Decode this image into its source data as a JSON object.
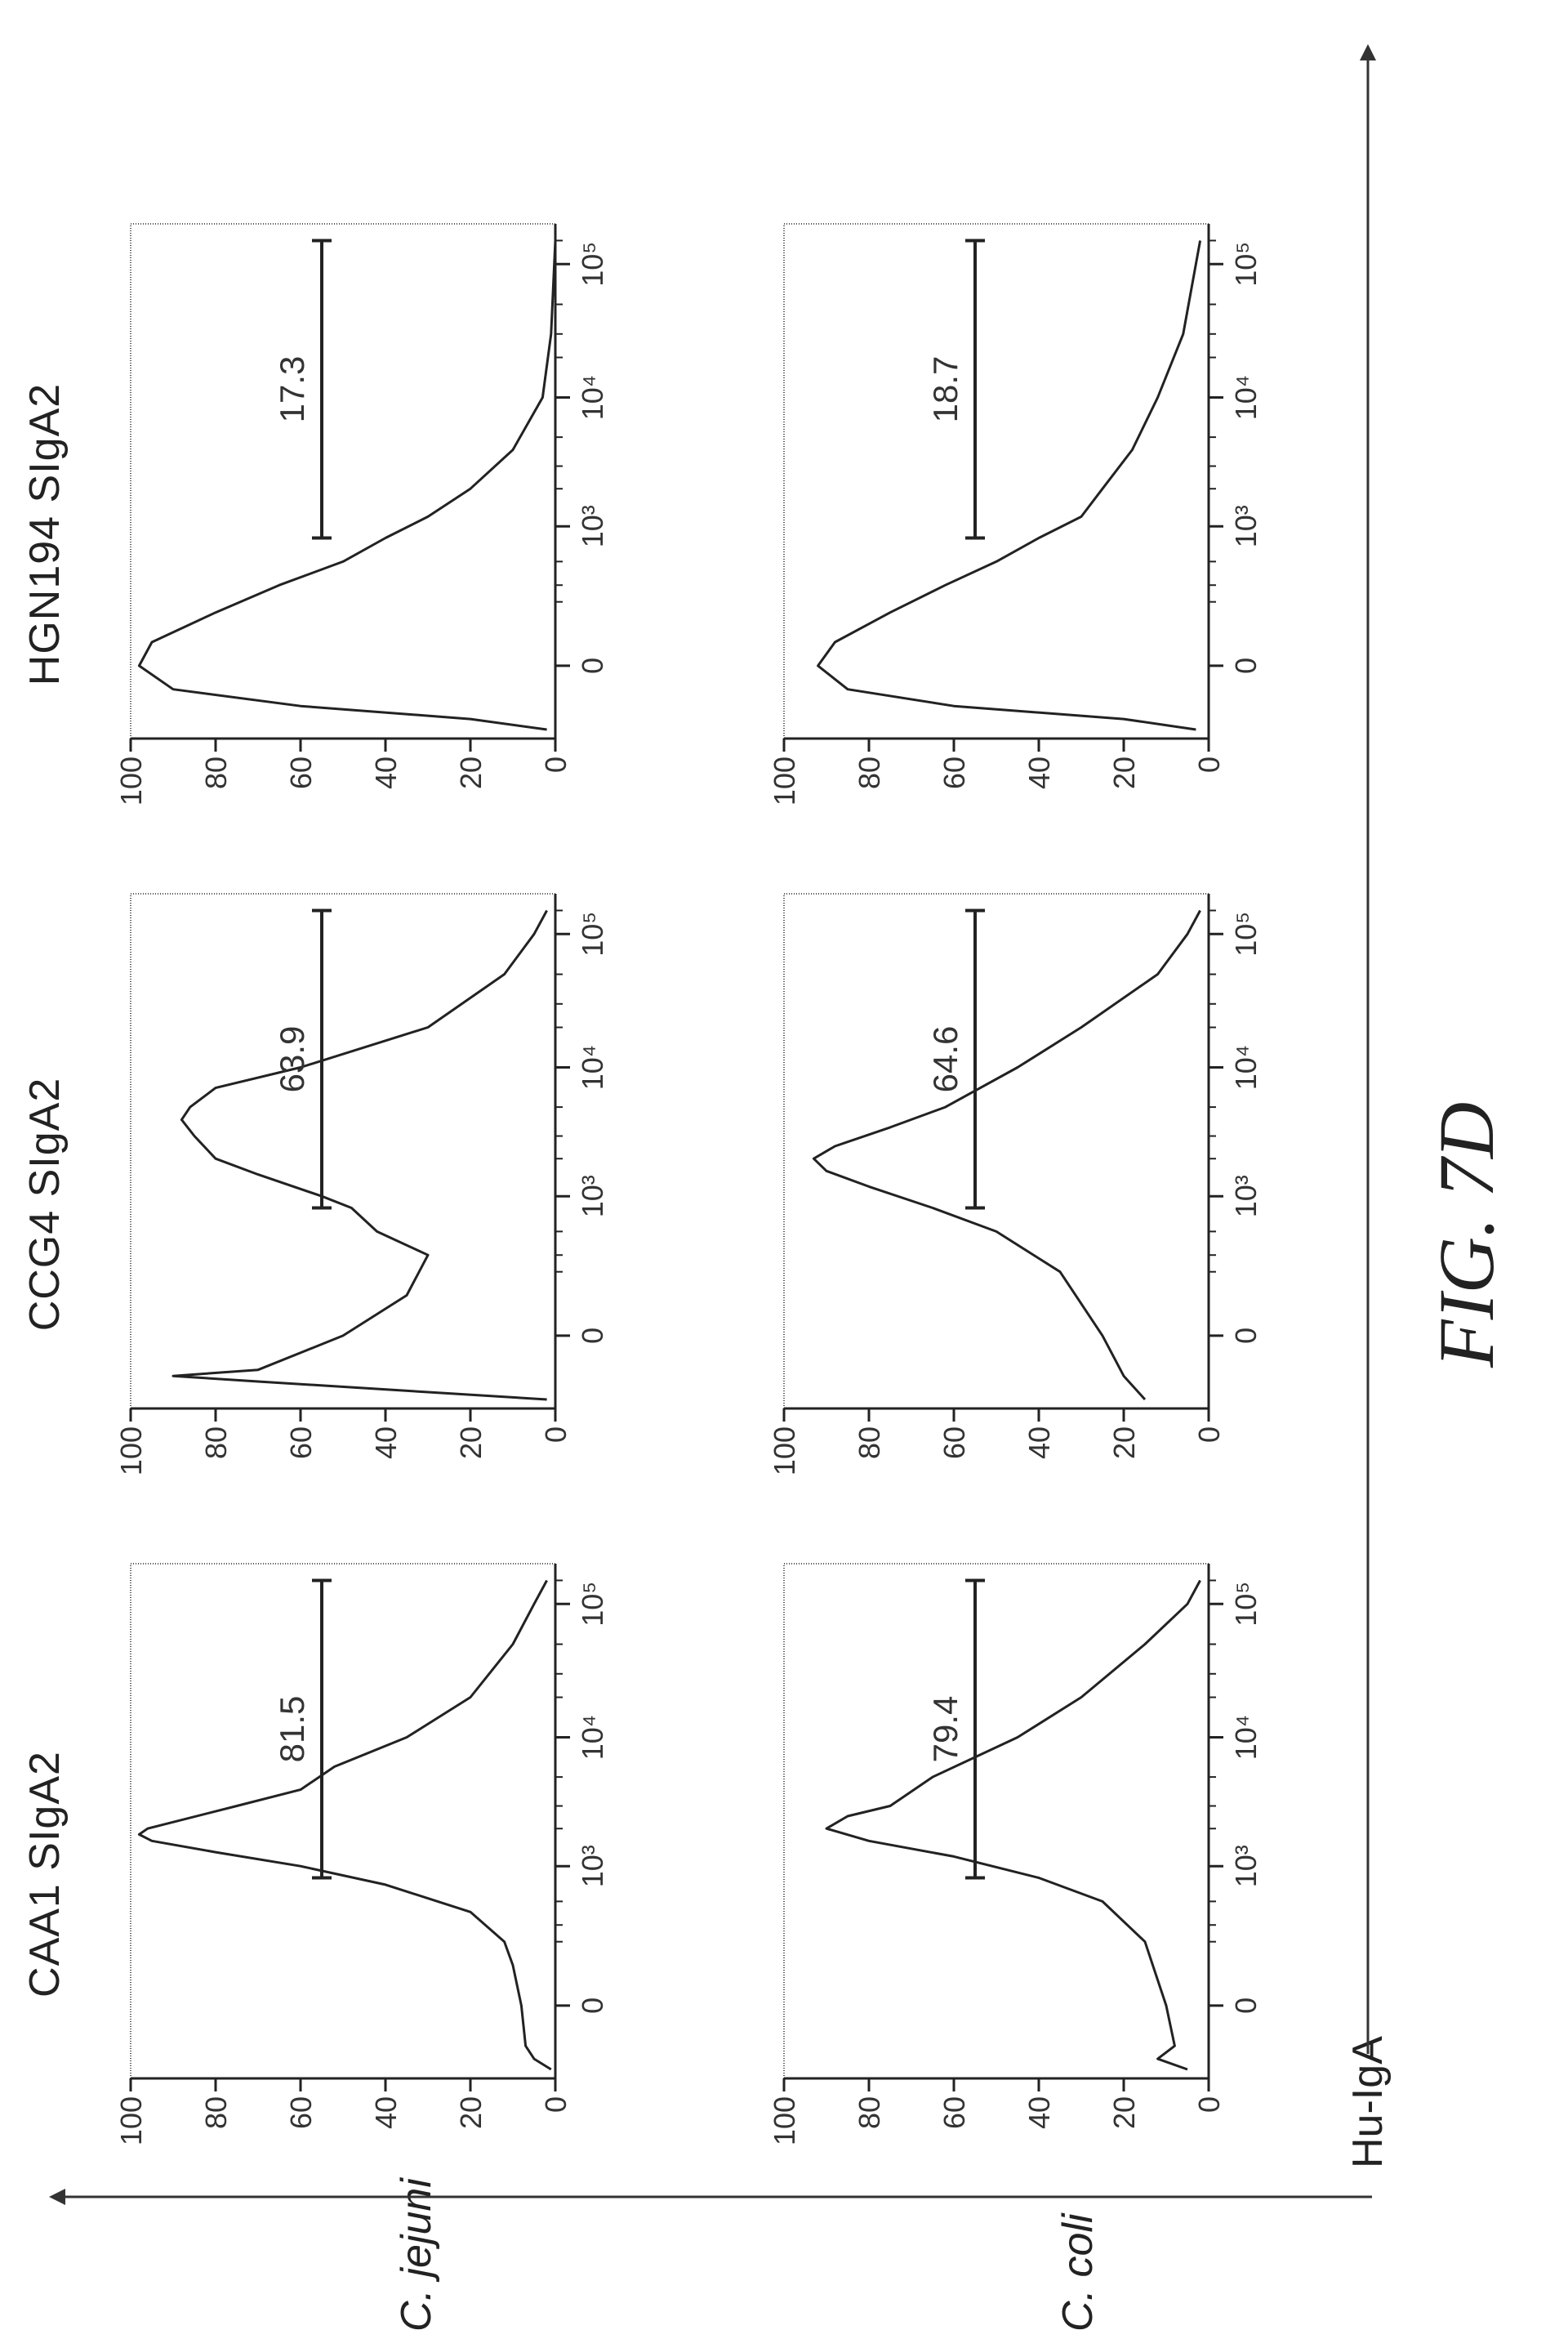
{
  "figure": {
    "label": "FIG. 7D",
    "x_axis_label": "Hu-IgA",
    "columns": [
      "CAA1 SIgA2",
      "CCG4 SIgA2",
      "HGN194 SIgA2"
    ],
    "rows": [
      "C. jejuni",
      "C. coli"
    ]
  },
  "chart_data": [
    {
      "type": "area",
      "row": "C. jejuni",
      "column": "CAA1 SIgA2",
      "gate_value": "81.5",
      "gate_range": [
        800,
        150000
      ],
      "ylim": [
        0,
        100
      ],
      "yticks": [
        "0",
        "20",
        "40",
        "60",
        "80",
        "100"
      ],
      "xticks": [
        "0",
        "10³",
        "10⁴",
        "10⁵"
      ],
      "points": [
        [
          -200,
          1
        ],
        [
          -150,
          5
        ],
        [
          -100,
          7
        ],
        [
          0,
          8
        ],
        [
          100,
          10
        ],
        [
          200,
          12
        ],
        [
          400,
          20
        ],
        [
          700,
          40
        ],
        [
          1000,
          60
        ],
        [
          1300,
          80
        ],
        [
          1600,
          95
        ],
        [
          1800,
          98
        ],
        [
          2000,
          96
        ],
        [
          3000,
          75
        ],
        [
          4000,
          60
        ],
        [
          6000,
          52
        ],
        [
          10000,
          35
        ],
        [
          20000,
          20
        ],
        [
          50000,
          10
        ],
        [
          100000,
          5
        ],
        [
          150000,
          2
        ]
      ]
    },
    {
      "type": "area",
      "row": "C. jejuni",
      "column": "CCG4 SIgA2",
      "gate_value": "63.9",
      "gate_range": [
        800,
        150000
      ],
      "ylim": [
        0,
        100
      ],
      "yticks": [
        "0",
        "20",
        "40",
        "60",
        "80",
        "100"
      ],
      "xticks": [
        "0",
        "10³",
        "10⁴",
        "10⁵"
      ],
      "points": [
        [
          -200,
          2
        ],
        [
          -120,
          70
        ],
        [
          -100,
          90
        ],
        [
          -80,
          70
        ],
        [
          0,
          50
        ],
        [
          100,
          35
        ],
        [
          300,
          30
        ],
        [
          500,
          42
        ],
        [
          800,
          48
        ],
        [
          1000,
          55
        ],
        [
          1500,
          70
        ],
        [
          2000,
          80
        ],
        [
          3000,
          85
        ],
        [
          4000,
          88
        ],
        [
          5000,
          86
        ],
        [
          7000,
          80
        ],
        [
          10000,
          60
        ],
        [
          20000,
          30
        ],
        [
          50000,
          12
        ],
        [
          100000,
          5
        ],
        [
          150000,
          2
        ]
      ]
    },
    {
      "type": "area",
      "row": "C. jejuni",
      "column": "HGN194 SIgA2",
      "gate_value": "17.3",
      "gate_range": [
        800,
        150000
      ],
      "ylim": [
        0,
        100
      ],
      "yticks": [
        "0",
        "20",
        "40",
        "60",
        "80",
        "100"
      ],
      "xticks": [
        "0",
        "10³",
        "10⁴",
        "10⁵"
      ],
      "points": [
        [
          -200,
          2
        ],
        [
          -150,
          20
        ],
        [
          -100,
          60
        ],
        [
          -50,
          90
        ],
        [
          0,
          98
        ],
        [
          50,
          95
        ],
        [
          150,
          80
        ],
        [
          300,
          65
        ],
        [
          500,
          50
        ],
        [
          800,
          40
        ],
        [
          1200,
          30
        ],
        [
          2000,
          20
        ],
        [
          4000,
          10
        ],
        [
          10000,
          3
        ],
        [
          30000,
          1
        ],
        [
          150000,
          0
        ]
      ]
    },
    {
      "type": "area",
      "row": "C. coli",
      "column": "CAA1 SIgA2",
      "gate_value": "79.4",
      "gate_range": [
        800,
        150000
      ],
      "ylim": [
        0,
        100
      ],
      "yticks": [
        "0",
        "20",
        "40",
        "60",
        "80",
        "100"
      ],
      "xticks": [
        "0",
        "10³",
        "10⁴",
        "10⁵"
      ],
      "points": [
        [
          -200,
          5
        ],
        [
          -150,
          12
        ],
        [
          -100,
          8
        ],
        [
          0,
          10
        ],
        [
          200,
          15
        ],
        [
          500,
          25
        ],
        [
          800,
          40
        ],
        [
          1200,
          60
        ],
        [
          1600,
          80
        ],
        [
          2000,
          90
        ],
        [
          2500,
          85
        ],
        [
          3000,
          75
        ],
        [
          5000,
          65
        ],
        [
          10000,
          45
        ],
        [
          20000,
          30
        ],
        [
          50000,
          15
        ],
        [
          100000,
          5
        ],
        [
          150000,
          2
        ]
      ]
    },
    {
      "type": "area",
      "row": "C. coli",
      "column": "CCG4 SIgA2",
      "gate_value": "64.6",
      "gate_range": [
        800,
        150000
      ],
      "ylim": [
        0,
        100
      ],
      "yticks": [
        "0",
        "20",
        "40",
        "60",
        "80",
        "100"
      ],
      "xticks": [
        "0",
        "10³",
        "10⁴",
        "10⁵"
      ],
      "points": [
        [
          -200,
          15
        ],
        [
          -100,
          20
        ],
        [
          0,
          25
        ],
        [
          200,
          35
        ],
        [
          500,
          50
        ],
        [
          800,
          65
        ],
        [
          1200,
          80
        ],
        [
          1600,
          90
        ],
        [
          2000,
          93
        ],
        [
          2500,
          88
        ],
        [
          3500,
          75
        ],
        [
          5000,
          62
        ],
        [
          10000,
          45
        ],
        [
          20000,
          30
        ],
        [
          50000,
          12
        ],
        [
          100000,
          5
        ],
        [
          150000,
          2
        ]
      ]
    },
    {
      "type": "area",
      "row": "C. coli",
      "column": "HGN194 SIgA2",
      "gate_value": "18.7",
      "gate_range": [
        800,
        150000
      ],
      "ylim": [
        0,
        100
      ],
      "yticks": [
        "0",
        "20",
        "40",
        "60",
        "80",
        "100"
      ],
      "xticks": [
        "0",
        "10³",
        "10⁴",
        "10⁵"
      ],
      "points": [
        [
          -200,
          3
        ],
        [
          -150,
          20
        ],
        [
          -100,
          60
        ],
        [
          -50,
          85
        ],
        [
          0,
          92
        ],
        [
          50,
          88
        ],
        [
          150,
          75
        ],
        [
          300,
          62
        ],
        [
          500,
          50
        ],
        [
          800,
          40
        ],
        [
          1200,
          30
        ],
        [
          2000,
          25
        ],
        [
          4000,
          18
        ],
        [
          10000,
          12
        ],
        [
          30000,
          6
        ],
        [
          150000,
          2
        ]
      ]
    }
  ]
}
